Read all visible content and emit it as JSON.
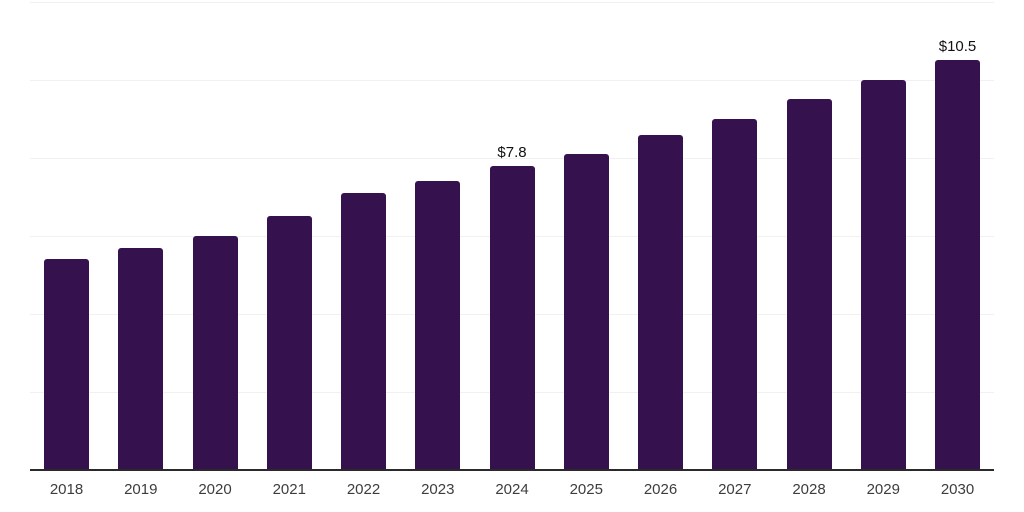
{
  "chart_data": {
    "type": "bar",
    "categories": [
      "2018",
      "2019",
      "2020",
      "2021",
      "2022",
      "2023",
      "2024",
      "2025",
      "2026",
      "2027",
      "2028",
      "2029",
      "2030"
    ],
    "values": [
      5.4,
      5.7,
      6.0,
      6.5,
      7.1,
      7.4,
      7.8,
      8.1,
      8.6,
      9.0,
      9.5,
      10.0,
      10.5
    ],
    "data_labels": {
      "2024": "$7.8",
      "2030": "$10.5"
    },
    "title": "",
    "xlabel": "",
    "ylabel": "",
    "ylim": [
      0,
      12
    ],
    "gridline_step": 2,
    "grid": true,
    "legend": false,
    "y_axis_labels_visible": false,
    "colors": {
      "bar": "#35124E",
      "gridline": "#f1f1f3",
      "axis_line": "#2a2a2a",
      "tick_label": "#3d3d3d",
      "value_label": "#111111",
      "background": "#ffffff"
    }
  }
}
